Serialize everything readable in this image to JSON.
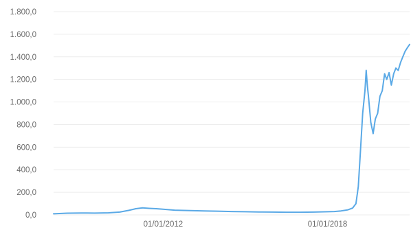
{
  "chart_data": {
    "type": "line",
    "title": "",
    "xlabel": "",
    "ylabel": "",
    "x_type": "date",
    "xlim": [
      "2008-01-01",
      "2020-12-31"
    ],
    "ylim": [
      0,
      1800
    ],
    "y_ticks": [
      0,
      200,
      400,
      600,
      800,
      1000,
      1200,
      1400,
      1600,
      1800
    ],
    "y_tick_labels": [
      "0,0",
      "200,0",
      "400,0",
      "600,0",
      "800,0",
      "1.000,0",
      "1.200,0",
      "1.400,0",
      "1.600,0",
      "1.800,0"
    ],
    "x_ticks": [
      "2012-01-01",
      "2018-01-01"
    ],
    "x_tick_labels": [
      "01/01/2012",
      "01/01/2018"
    ],
    "grid": true,
    "legend": "none",
    "line_color": "#5aa9e6",
    "series": [
      {
        "x": [
          "2008-01-01",
          "2008-07-01",
          "2009-01-01",
          "2009-07-01",
          "2010-01-01",
          "2010-06-01",
          "2010-10-01",
          "2011-01-01",
          "2011-04-01",
          "2011-07-01",
          "2011-10-01",
          "2012-01-01",
          "2012-06-01",
          "2013-01-01",
          "2013-07-01",
          "2014-01-01",
          "2014-07-01",
          "2015-01-01",
          "2015-07-01",
          "2016-01-01",
          "2016-07-01",
          "2017-01-01",
          "2017-07-01",
          "2018-01-01",
          "2018-04-01",
          "2018-07-01",
          "2018-10-01",
          "2018-12-01",
          "2019-01-15",
          "2019-02-15",
          "2019-03-15",
          "2019-04-15",
          "2019-05-15",
          "2019-06-01",
          "2019-06-15",
          "2019-07-01",
          "2019-08-01",
          "2019-09-01",
          "2019-10-01",
          "2019-11-01",
          "2019-12-01",
          "2020-01-01",
          "2020-02-01",
          "2020-03-01",
          "2020-04-01",
          "2020-05-01",
          "2020-06-01",
          "2020-07-01",
          "2020-08-01",
          "2020-09-01",
          "2020-10-01",
          "2020-11-01",
          "2020-12-01",
          "2020-12-31"
        ],
        "values": [
          10,
          15,
          17,
          16,
          18,
          25,
          40,
          55,
          62,
          58,
          55,
          50,
          42,
          38,
          35,
          33,
          30,
          28,
          26,
          25,
          24,
          24,
          25,
          28,
          30,
          35,
          45,
          60,
          100,
          250,
          550,
          900,
          1100,
          1280,
          1150,
          1050,
          820,
          720,
          850,
          900,
          1050,
          1100,
          1250,
          1200,
          1260,
          1150,
          1250,
          1300,
          1280,
          1350,
          1400,
          1450,
          1480,
          1510
        ]
      }
    ]
  }
}
